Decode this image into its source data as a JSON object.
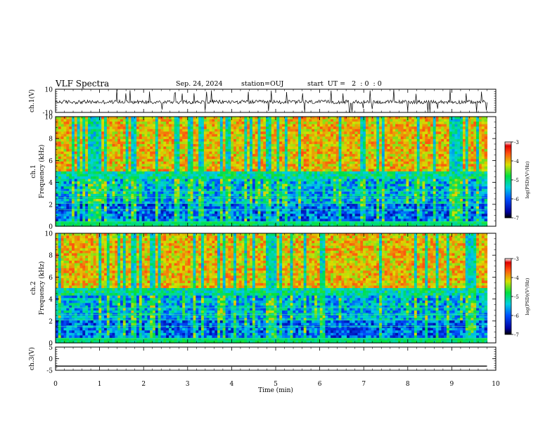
{
  "header": {
    "title": "VLF Spectra",
    "date": "Sep. 24, 2024",
    "station": "station=OUJ",
    "start_ut": "start  UT =   2  : 0  : 0"
  },
  "chart_data": [
    {
      "type": "line",
      "panel": "ch1-waveform",
      "ylabel": "ch.1(V)",
      "ylim": [
        -10,
        10
      ],
      "yticks": [
        "10",
        "-10"
      ],
      "x_unit": "min",
      "xlim": [
        0,
        10
      ],
      "data_end": 9.8,
      "description_of_signal": "noisy trace around about -1 V with spikes to about ±10 V",
      "baseline": -1.0,
      "spike_amplitude": 10,
      "color": "#000000"
    },
    {
      "type": "heatmap",
      "panel": "ch1-spectrogram",
      "ylabel": "ch.1\nFrequency  (kHz)",
      "ylabel_line1": "ch.1",
      "ylabel_line2": "Frequency  (kHz)",
      "ylim": [
        0,
        10
      ],
      "yticks": [
        "0",
        "2",
        "4",
        "6",
        "8",
        "10"
      ],
      "xlim": [
        0,
        10
      ],
      "data_end": 9.8,
      "colorbar": {
        "label": "log(PSD)(V²/Hz)",
        "range": [
          -7,
          -3
        ],
        "ticks": [
          "-3",
          "-4",
          "-5",
          "-6",
          "-7"
        ]
      },
      "dominant_levels": {
        "above_5kHz": -3.5,
        "2_to_5kHz": -6.0,
        "below_2kHz": -6.5
      }
    },
    {
      "type": "heatmap",
      "panel": "ch2-spectrogram",
      "ylabel_line1": "ch.2",
      "ylabel_line2": "Frequency  (kHz)",
      "ylim": [
        0,
        10
      ],
      "yticks": [
        "0",
        "2",
        "4",
        "6",
        "8",
        "10"
      ],
      "xlim": [
        0,
        10
      ],
      "data_end": 9.8,
      "colorbar": {
        "label": "log(PSD)(V²/Hz)",
        "range": [
          -7,
          -3
        ],
        "ticks": [
          "-3",
          "-4",
          "-5",
          "-6",
          "-7"
        ]
      }
    },
    {
      "type": "line",
      "panel": "ch3-waveform",
      "ylabel": "ch.3(V)",
      "ylim": [
        -5,
        5
      ],
      "yticks": [
        "5",
        "0",
        "-5"
      ],
      "xlim": [
        0,
        10
      ],
      "data_end": 9.8,
      "constant_value": -3.2,
      "xlabel": "Time  (min)",
      "xticks": [
        "0",
        "1",
        "2",
        "3",
        "4",
        "5",
        "6",
        "7",
        "8",
        "9",
        "10"
      ]
    }
  ]
}
